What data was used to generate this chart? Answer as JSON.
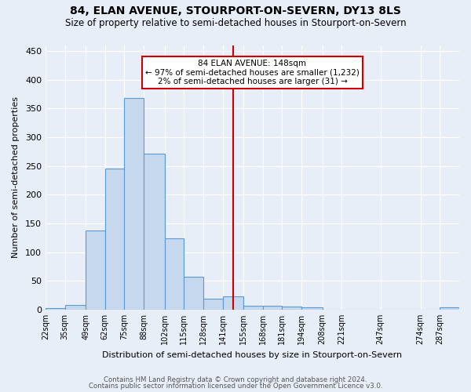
{
  "title": "84, ELAN AVENUE, STOURPORT-ON-SEVERN, DY13 8LS",
  "subtitle": "Size of property relative to semi-detached houses in Stourport-on-Severn",
  "xlabel": "Distribution of semi-detached houses by size in Stourport-on-Severn",
  "ylabel": "Number of semi-detached properties",
  "footer1": "Contains HM Land Registry data © Crown copyright and database right 2024.",
  "footer2": "Contains public sector information licensed under the Open Government Licence v3.0.",
  "bin_edges": [
    22,
    35,
    49,
    62,
    75,
    88,
    102,
    115,
    128,
    141,
    155,
    168,
    181,
    194,
    208,
    221,
    247,
    274,
    287,
    300
  ],
  "bin_labels": [
    "22sqm",
    "35sqm",
    "49sqm",
    "62sqm",
    "75sqm",
    "88sqm",
    "102sqm",
    "115sqm",
    "128sqm",
    "141sqm",
    "155sqm",
    "168sqm",
    "181sqm",
    "194sqm",
    "208sqm",
    "221sqm",
    "247sqm",
    "274sqm",
    "287sqm"
  ],
  "bar_heights": [
    3,
    8,
    137,
    245,
    368,
    271,
    124,
    57,
    19,
    23,
    7,
    7,
    6,
    4,
    0,
    0,
    0,
    0,
    4
  ],
  "bar_color": "#c5d8ed",
  "bar_edge_color": "#5b9bd5",
  "bg_color": "#e8eef7",
  "grid_color": "#ffffff",
  "property_size": 148,
  "vline_color": "#cc0000",
  "annotation_line1": "84 ELAN AVENUE: 148sqm",
  "annotation_line2": "← 97% of semi-detached houses are smaller (1,232)",
  "annotation_line3": "2% of semi-detached houses are larger (31) →",
  "annotation_box_color": "#cc0000",
  "ylim": [
    0,
    460
  ],
  "yticks": [
    0,
    50,
    100,
    150,
    200,
    250,
    300,
    350,
    400,
    450
  ]
}
